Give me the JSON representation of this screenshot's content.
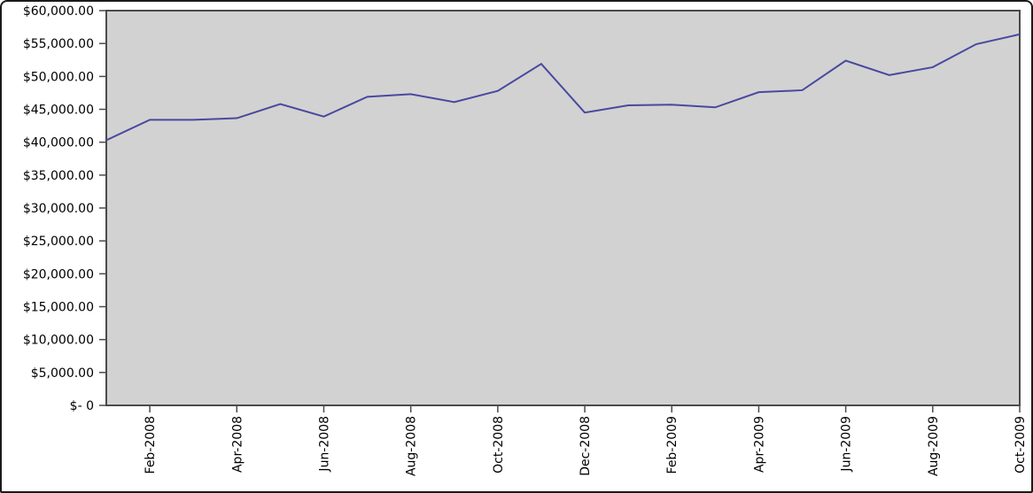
{
  "chart_data": {
    "type": "line",
    "title": "",
    "x": [
      "Jan-2008",
      "Feb-2008",
      "Mar-2008",
      "Apr-2008",
      "May-2008",
      "Jun-2008",
      "Jul-2008",
      "Aug-2008",
      "Sep-2008",
      "Oct-2008",
      "Nov-2008",
      "Dec-2008",
      "Jan-2009",
      "Feb-2009",
      "Mar-2009",
      "Apr-2009",
      "May-2009",
      "Jun-2009",
      "Jul-2009",
      "Aug-2009",
      "Sep-2009",
      "Oct-2009"
    ],
    "values": [
      40300,
      43400,
      43400,
      43650,
      45800,
      43900,
      46900,
      47300,
      46100,
      47800,
      51900,
      44500,
      45600,
      45700,
      45300,
      47600,
      47900,
      52400,
      50200,
      51400,
      54900,
      56400
    ],
    "x_ticks": [
      {
        "index": 1,
        "label": "Feb-2008"
      },
      {
        "index": 3,
        "label": "Apr-2008"
      },
      {
        "index": 5,
        "label": "Jun-2008"
      },
      {
        "index": 7,
        "label": "Aug-2008"
      },
      {
        "index": 9,
        "label": "Oct-2008"
      },
      {
        "index": 11,
        "label": "Dec-2008"
      },
      {
        "index": 13,
        "label": "Feb-2009"
      },
      {
        "index": 15,
        "label": "Apr-2009"
      },
      {
        "index": 17,
        "label": "Jun-2009"
      },
      {
        "index": 19,
        "label": "Aug-2009"
      },
      {
        "index": 21,
        "label": "Oct-2009"
      }
    ],
    "y_ticks": [
      {
        "value": 60000,
        "label": "$60,000.00"
      },
      {
        "value": 55000,
        "label": "$55,000.00"
      },
      {
        "value": 50000,
        "label": "$50,000.00"
      },
      {
        "value": 45000,
        "label": "$45,000.00"
      },
      {
        "value": 40000,
        "label": "$40,000.00"
      },
      {
        "value": 35000,
        "label": "$35,000.00"
      },
      {
        "value": 30000,
        "label": "$30,000.00"
      },
      {
        "value": 25000,
        "label": "$25,000.00"
      },
      {
        "value": 20000,
        "label": "$20,000.00"
      },
      {
        "value": 15000,
        "label": "$15,000.00"
      },
      {
        "value": 10000,
        "label": "$10,000.00"
      },
      {
        "value": 5000,
        "label": "$5,000.00"
      },
      {
        "value": 0,
        "label": "$- 0"
      }
    ],
    "ylim": [
      0,
      60000
    ],
    "grid": false,
    "legend": "none",
    "colors": {
      "line": "#4949a0",
      "plot_bg": "#d2d2d2",
      "axis": "#4a4a4a",
      "text": "#000000",
      "frame_border": "#1a1a1a",
      "background": "#ffffff"
    }
  }
}
